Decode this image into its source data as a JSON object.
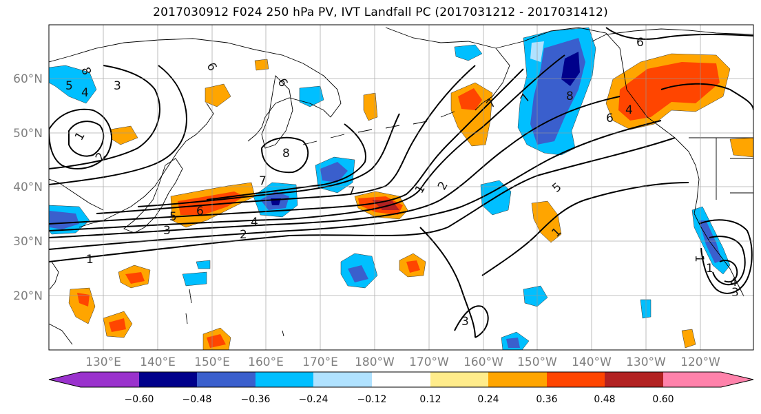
{
  "title": "2017030912 F024 250 hPa PV, IVT Landfall PC (2017031212 - 2017031412)",
  "map": {
    "lat_labels": [
      "60°N",
      "50°N",
      "40°N",
      "30°N",
      "20°N"
    ],
    "lon_labels": [
      "130°E",
      "140°E",
      "150°E",
      "160°E",
      "170°E",
      "180°W",
      "170°W",
      "160°W",
      "150°W",
      "140°W",
      "130°W",
      "120°W"
    ]
  },
  "contour_labels": [
    "8",
    "5",
    "4",
    "3",
    "1",
    "1",
    "2",
    "3",
    "4",
    "5",
    "6",
    "7",
    "8",
    "7",
    "6",
    "1",
    "2",
    "5",
    "7",
    "8",
    "6",
    "7",
    "6",
    "4",
    "1",
    "2",
    "3",
    "1",
    "3",
    "4",
    "1",
    "6"
  ],
  "colorbar": {
    "ticks": [
      "−0.60",
      "−0.48",
      "−0.36",
      "−0.24",
      "−0.12",
      "0.12",
      "0.24",
      "0.36",
      "0.48",
      "0.60"
    ],
    "colors": [
      "#9a32cd",
      "#00008b",
      "#3a5fcd",
      "#00bfff",
      "#b0e2ff",
      "#ffffff",
      "#ffec8b",
      "#ffa500",
      "#ff4500",
      "#b22222",
      "#ff82ab"
    ]
  }
}
